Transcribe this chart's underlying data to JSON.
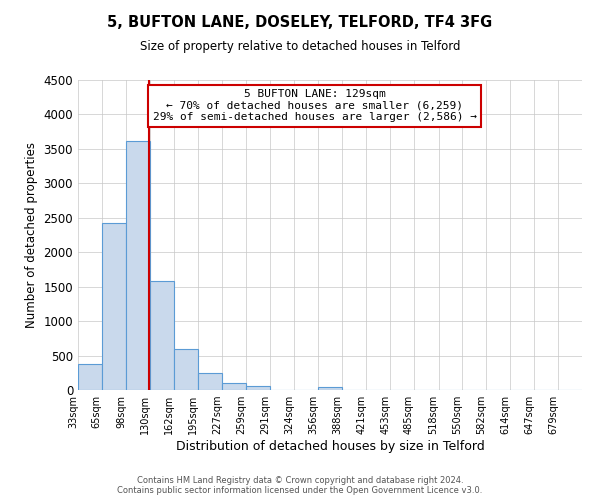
{
  "title": "5, BUFTON LANE, DOSELEY, TELFORD, TF4 3FG",
  "subtitle": "Size of property relative to detached houses in Telford",
  "xlabel": "Distribution of detached houses by size in Telford",
  "ylabel": "Number of detached properties",
  "bin_labels": [
    "33sqm",
    "65sqm",
    "98sqm",
    "130sqm",
    "162sqm",
    "195sqm",
    "227sqm",
    "259sqm",
    "291sqm",
    "324sqm",
    "356sqm",
    "388sqm",
    "421sqm",
    "453sqm",
    "485sqm",
    "518sqm",
    "550sqm",
    "582sqm",
    "614sqm",
    "647sqm",
    "679sqm"
  ],
  "bin_edges": [
    33,
    65,
    98,
    130,
    162,
    195,
    227,
    259,
    291,
    324,
    356,
    388,
    421,
    453,
    485,
    518,
    550,
    582,
    614,
    647,
    679,
    711
  ],
  "bar_values": [
    380,
    2420,
    3620,
    1580,
    600,
    240,
    100,
    55,
    0,
    0,
    40,
    0,
    0,
    0,
    0,
    0,
    0,
    0,
    0,
    0,
    0
  ],
  "bar_color": "#c9d9ec",
  "bar_edge_color": "#5b9bd5",
  "bar_edge_width": 0.8,
  "property_line_x": 129,
  "property_line_color": "#cc0000",
  "ylim": [
    0,
    4500
  ],
  "yticks": [
    0,
    500,
    1000,
    1500,
    2000,
    2500,
    3000,
    3500,
    4000,
    4500
  ],
  "annotation_text": "5 BUFTON LANE: 129sqm\n← 70% of detached houses are smaller (6,259)\n29% of semi-detached houses are larger (2,586) →",
  "annotation_box_color": "#ffffff",
  "annotation_box_edge": "#cc0000",
  "background_color": "#ffffff",
  "grid_color": "#c8c8c8",
  "footer_line1": "Contains HM Land Registry data © Crown copyright and database right 2024.",
  "footer_line2": "Contains public sector information licensed under the Open Government Licence v3.0."
}
